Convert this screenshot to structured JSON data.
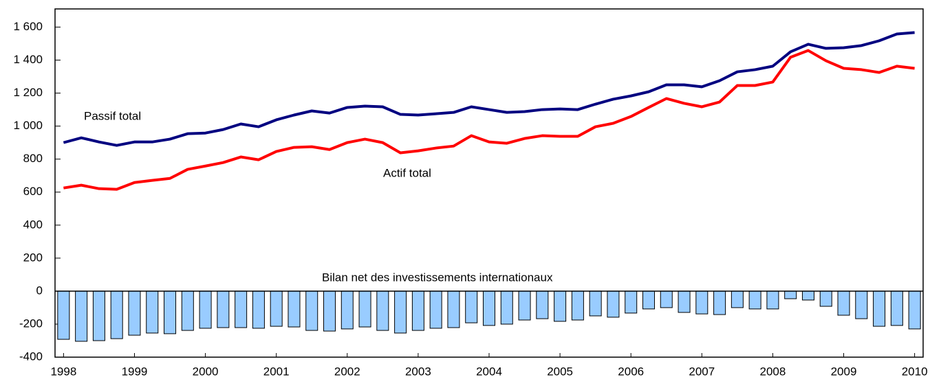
{
  "chart_data": {
    "type": "combo",
    "x": [
      1998,
      1998.25,
      1998.5,
      1998.75,
      1999,
      1999.25,
      1999.5,
      1999.75,
      2000,
      2000.25,
      2000.5,
      2000.75,
      2001,
      2001.25,
      2001.5,
      2001.75,
      2002,
      2002.25,
      2002.5,
      2002.75,
      2003,
      2003.25,
      2003.5,
      2003.75,
      2004,
      2004.25,
      2004.5,
      2004.75,
      2005,
      2005.25,
      2005.5,
      2005.75,
      2006,
      2006.25,
      2006.5,
      2006.75,
      2007,
      2007.25,
      2007.5,
      2007.75,
      2008,
      2008.25,
      2008.5,
      2008.75,
      2009,
      2009.25,
      2009.5,
      2009.75,
      2010
    ],
    "xlim": [
      1997.88,
      2010.12
    ],
    "xticks": [
      1998,
      1999,
      2000,
      2001,
      2002,
      2003,
      2004,
      2005,
      2006,
      2007,
      2008,
      2009,
      2010
    ],
    "ylim": [
      -400,
      1710
    ],
    "yticks": [
      {
        "value": -400,
        "label": "-400"
      },
      -200,
      0,
      200,
      400,
      600,
      800,
      {
        "value": 1000,
        "label": "1 000"
      },
      {
        "value": 1200,
        "label": "1 200"
      },
      {
        "value": 1400,
        "label": "1 400"
      },
      {
        "value": 1600,
        "label": "1 600"
      }
    ],
    "series": [
      {
        "name": "Passif total",
        "type": "line",
        "color": "#000080",
        "values": [
          900,
          929,
          904,
          883,
          904,
          904,
          921,
          954,
          958,
          979,
          1013,
          996,
          1038,
          1067,
          1092,
          1079,
          1113,
          1121,
          1117,
          1071,
          1067,
          1075,
          1083,
          1117,
          1100,
          1083,
          1088,
          1100,
          1104,
          1100,
          1133,
          1163,
          1183,
          1208,
          1250,
          1250,
          1238,
          1275,
          1329,
          1342,
          1363,
          1450,
          1496,
          1471,
          1475,
          1488,
          1517,
          1558,
          1567
        ]
      },
      {
        "name": "Actif total",
        "type": "line",
        "color": "#ff0000",
        "values": [
          625,
          642,
          621,
          617,
          658,
          671,
          683,
          738,
          758,
          779,
          813,
          796,
          846,
          871,
          875,
          858,
          900,
          921,
          900,
          838,
          850,
          867,
          879,
          942,
          904,
          896,
          925,
          942,
          938,
          938,
          996,
          1017,
          1058,
          1113,
          1167,
          1138,
          1117,
          1146,
          1246,
          1246,
          1267,
          1417,
          1458,
          1396,
          1350,
          1342,
          1325,
          1363,
          1350
        ]
      },
      {
        "name": "Bilan net des investissements internationaux",
        "type": "bar",
        "color": "#99ccff",
        "values": [
          -292,
          -304,
          -300,
          -288,
          -267,
          -254,
          -258,
          -238,
          -225,
          -221,
          -221,
          -225,
          -213,
          -217,
          -238,
          -242,
          -229,
          -217,
          -238,
          -254,
          -238,
          -225,
          -221,
          -192,
          -208,
          -200,
          -175,
          -167,
          -183,
          -175,
          -150,
          -158,
          -133,
          -108,
          -100,
          -129,
          -138,
          -142,
          -100,
          -108,
          -108,
          -46,
          -54,
          -92,
          -146,
          -167,
          -213,
          -208,
          -229
        ]
      }
    ]
  }
}
